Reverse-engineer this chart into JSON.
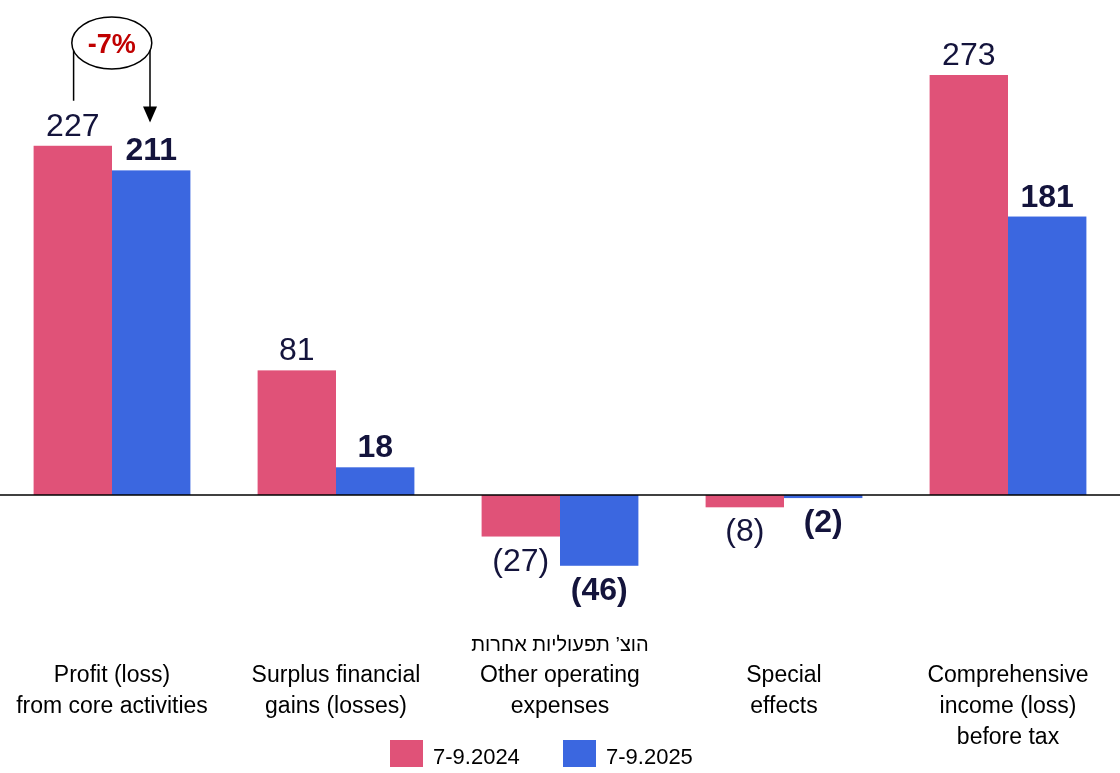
{
  "chart_data": {
    "type": "bar",
    "categories": [
      "Profit (loss)\nfrom core activities",
      "Surplus financial\ngains (losses)",
      "Other operating\nexpenses",
      "Special\neffects",
      "Comprehensive\nincome (loss)\nbefore tax"
    ],
    "series": [
      {
        "name": "7-9.2024",
        "color": "#e05278",
        "values": [
          227,
          81,
          -27,
          -8,
          273
        ],
        "value_labels": [
          "227",
          "81",
          "(27)",
          "(8)",
          "273"
        ]
      },
      {
        "name": "7-9.2025",
        "color": "#3b67e0",
        "values": [
          211,
          18,
          -46,
          -2,
          181
        ],
        "value_labels": [
          "211",
          "18",
          "(46)",
          "(2)",
          "181"
        ]
      }
    ],
    "tick_labels": "x",
    "legend": "bottom",
    "annotations": [
      "-7%",
      "הוצ’ תפעוליות אחרות"
    ]
  }
}
